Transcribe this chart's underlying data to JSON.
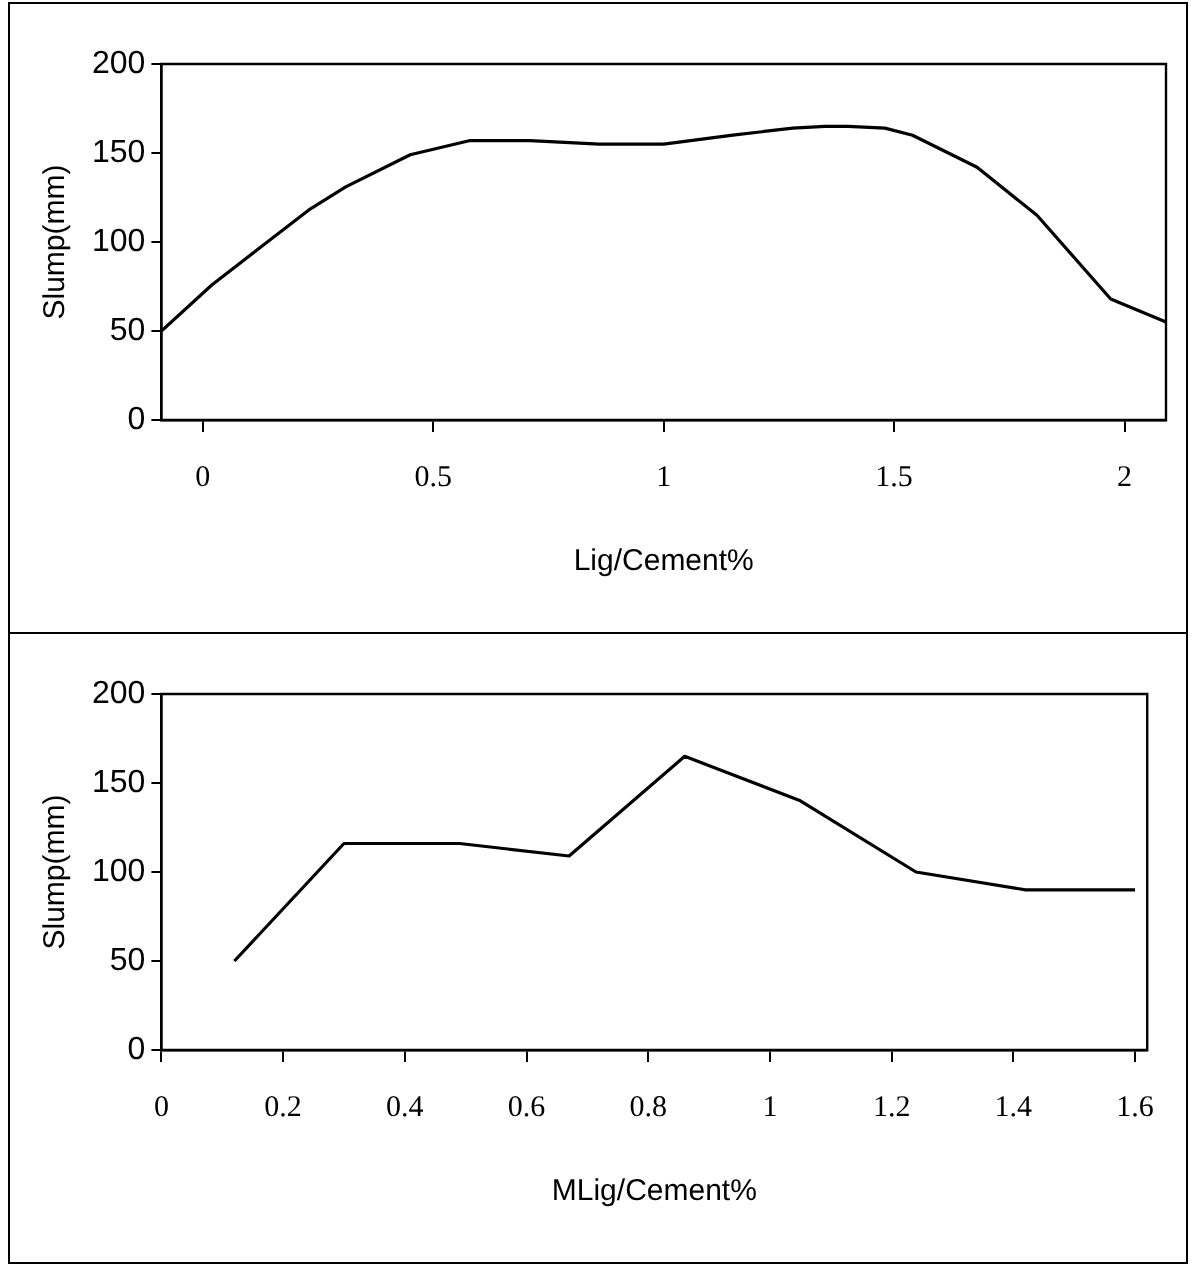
{
  "chart_data": [
    {
      "type": "line",
      "xlabel": "Lig/Cement%",
      "ylabel": "Slump(mm)",
      "color": "#000000",
      "marker": "none",
      "line_style": "solid",
      "x": [
        -0.09,
        0.02,
        0.23,
        0.31,
        0.45,
        0.58,
        0.71,
        0.86,
        1.0,
        1.15,
        1.28,
        1.35,
        1.4,
        1.48,
        1.54,
        1.68,
        1.81,
        1.97,
        2.09
      ],
      "values": [
        50,
        76,
        118,
        131,
        149,
        157,
        157,
        155,
        155,
        160,
        164,
        165,
        165,
        164,
        160,
        142,
        115,
        68,
        55
      ],
      "xlim": [
        -0.09,
        2.09
      ],
      "xticks": [
        0,
        0.5,
        1,
        1.5,
        2
      ],
      "ylim": [
        0,
        200
      ],
      "yticks": [
        0,
        50,
        100,
        150,
        200
      ]
    },
    {
      "type": "line",
      "xlabel": "MLig/Cement%",
      "ylabel": "Slump(mm)",
      "color": "#000000",
      "marker": "none",
      "line_style": "solid",
      "x": [
        0.12,
        0.3,
        0.49,
        0.67,
        0.86,
        1.05,
        1.24,
        1.42,
        1.6
      ],
      "values": [
        50,
        116,
        116,
        109,
        165,
        140,
        100,
        90,
        90
      ],
      "xlim": [
        0,
        1.62
      ],
      "xticks": [
        0,
        0.2,
        0.4,
        0.6,
        0.8,
        1,
        1.2,
        1.4,
        1.6
      ],
      "ylim": [
        0,
        200
      ],
      "yticks": [
        0,
        50,
        100,
        150,
        200
      ]
    }
  ]
}
